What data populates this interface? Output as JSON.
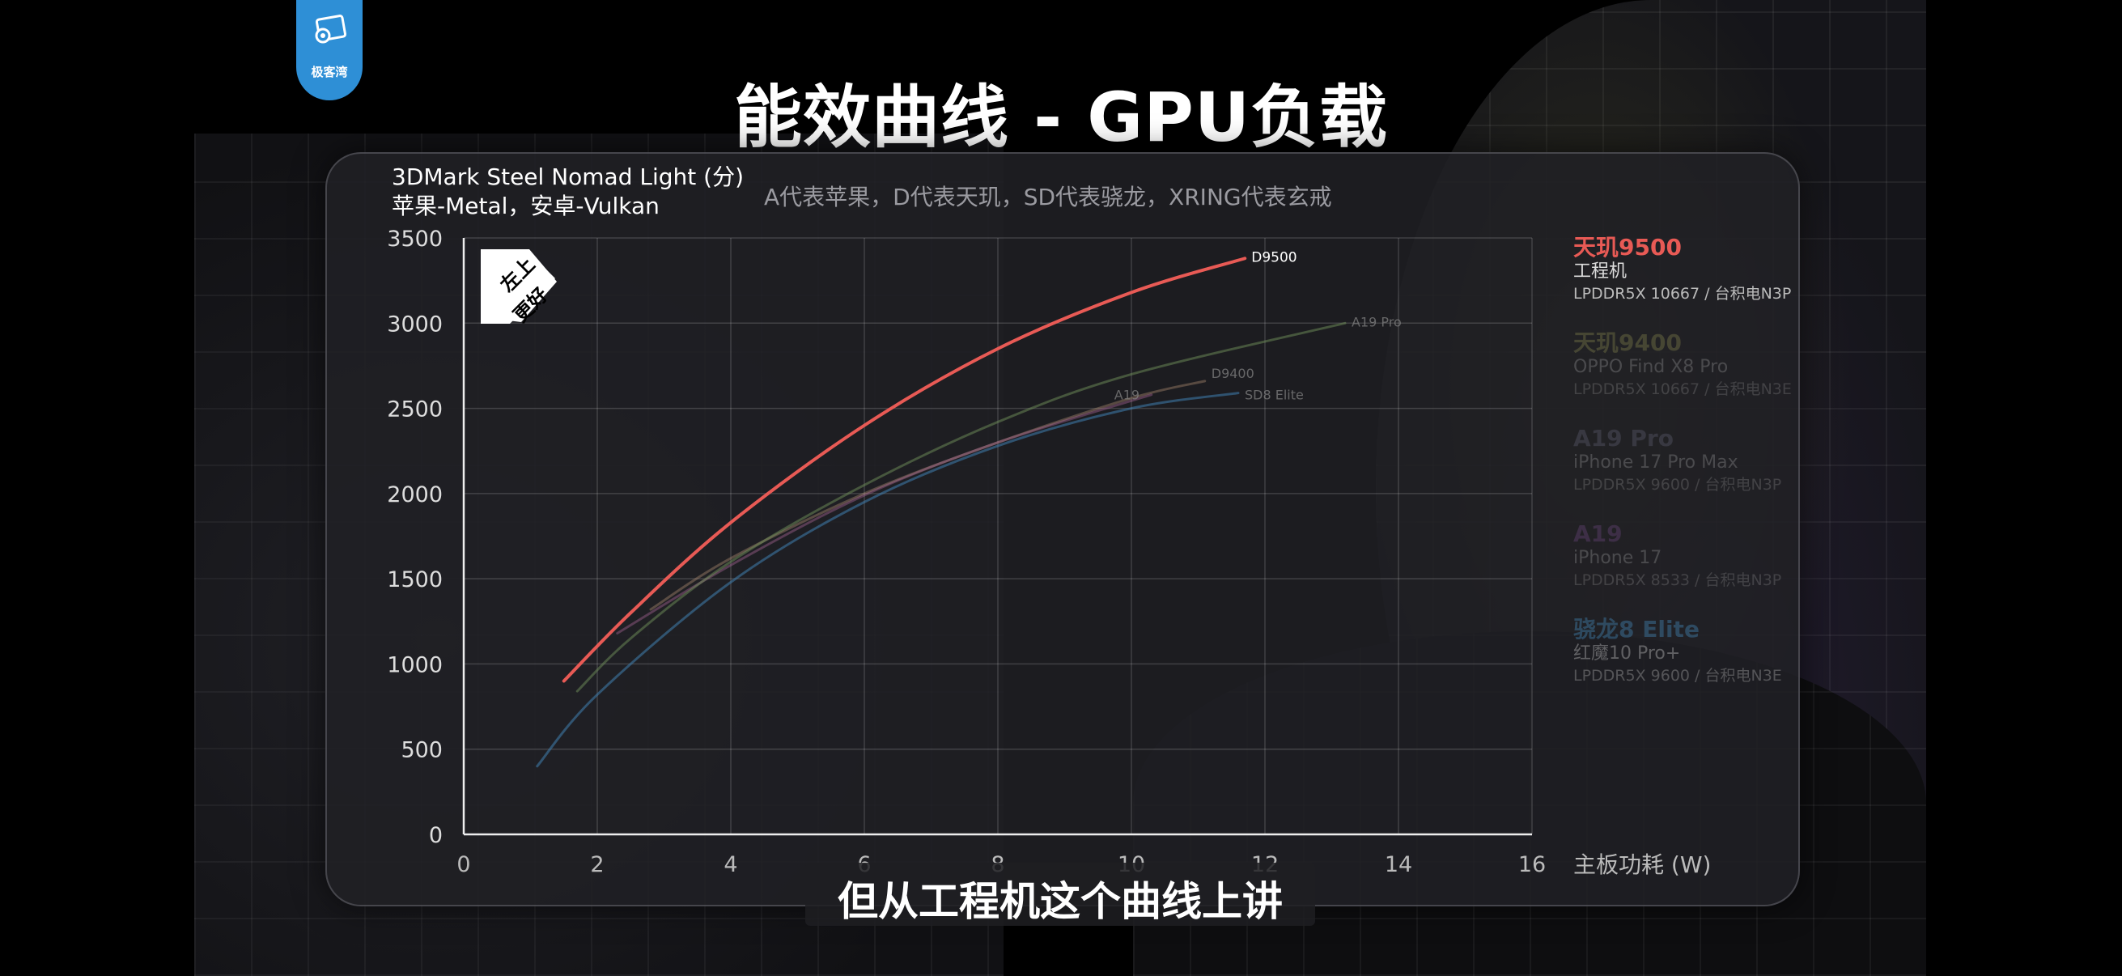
{
  "logo": {
    "text": "极客湾"
  },
  "title": "能效曲线 - GPU负载",
  "chart_header": {
    "title": "3DMark Steel Nomad Light (分)",
    "subtitle": "苹果-Metal，安卓-Vulkan",
    "note": "A代表苹果，D代表天玑，SD代表骁龙，XRING代表玄戒"
  },
  "badge": {
    "line1": "左上",
    "line2": "更好"
  },
  "legend": [
    {
      "name": "天玑9500",
      "device": "工程机",
      "memory": "LPDDR5X 10667 / 台积电N3P",
      "color": "#e85a55",
      "opacity": 1.0
    },
    {
      "name": "天玑9400",
      "device": "OPPO Find X8 Pro",
      "memory": "LPDDR5X 10667 / 台积电N3E",
      "color": "#c8c86a",
      "opacity": 0.22
    },
    {
      "name": "A19 Pro",
      "device": "iPhone 17 Pro Max",
      "memory": "LPDDR5X 9600 / 台积电N3P",
      "color": "#8a8aa8",
      "opacity": 0.22
    },
    {
      "name": "A19",
      "device": "iPhone 17",
      "memory": "LPDDR5X 8533 / 台积电N3P",
      "color": "#a060c0",
      "opacity": 0.22
    },
    {
      "name": "骁龙8 Elite",
      "device": "红魔10 Pro+",
      "memory": "LPDDR5X 9600 / 台积电N3E",
      "color": "#4a9ad0",
      "opacity": 0.35
    }
  ],
  "subtitle_caption": "但从工程机这个曲线上讲",
  "chart_data": {
    "type": "line",
    "xlabel": "主板功耗 (W)",
    "ylabel": "3DMark Steel Nomad Light (分)",
    "xlim": [
      0,
      16
    ],
    "ylim": [
      0,
      3500
    ],
    "xticks": [
      0,
      2,
      4,
      6,
      8,
      10,
      12,
      14,
      16
    ],
    "yticks": [
      0,
      500,
      1000,
      1500,
      2000,
      2500,
      3000,
      3500
    ],
    "grid": true,
    "series": [
      {
        "name": "D9500",
        "color": "#e85a55",
        "opacity": 1.0,
        "width": 4,
        "x": [
          1.5,
          2.5,
          4,
          6,
          8,
          10,
          11.7
        ],
        "y": [
          900,
          1300,
          1830,
          2400,
          2850,
          3180,
          3380
        ]
      },
      {
        "name": "A19 Pro",
        "color": "#6f8f5a",
        "opacity": 0.5,
        "width": 3,
        "x": [
          1.7,
          2.5,
          4,
          6,
          8,
          10,
          13.2
        ],
        "y": [
          840,
          1150,
          1600,
          2050,
          2420,
          2700,
          3000
        ]
      },
      {
        "name": "D9400",
        "color": "#c8a080",
        "opacity": 0.35,
        "width": 3,
        "x": [
          2.8,
          4,
          6,
          8,
          10,
          11.1
        ],
        "y": [
          1320,
          1620,
          2000,
          2300,
          2560,
          2660
        ]
      },
      {
        "name": "A19",
        "color": "#b06a9a",
        "opacity": 0.4,
        "width": 3,
        "x": [
          2.3,
          4,
          6,
          8,
          10.3
        ],
        "y": [
          1180,
          1580,
          1990,
          2300,
          2580
        ]
      },
      {
        "name": "SD8 Elite",
        "color": "#3f7fb0",
        "opacity": 0.55,
        "width": 3,
        "x": [
          1.1,
          2,
          4,
          6,
          8,
          10,
          11.6
        ],
        "y": [
          400,
          820,
          1480,
          1950,
          2280,
          2500,
          2590
        ]
      }
    ]
  }
}
